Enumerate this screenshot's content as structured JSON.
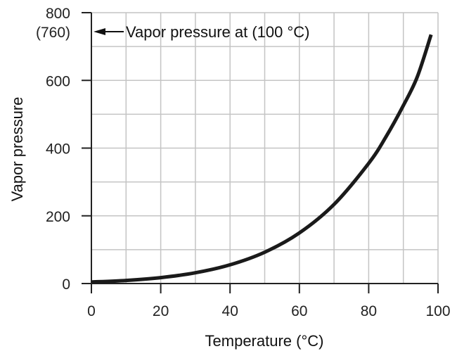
{
  "chart_data": {
    "type": "line",
    "title": "",
    "xlabel": "Temperature (°C)",
    "ylabel": "Vapor pressure",
    "xlim": [
      0,
      100
    ],
    "ylim": [
      0,
      800
    ],
    "x_ticks": [
      "0",
      "20",
      "40",
      "60",
      "80",
      "100"
    ],
    "y_ticks": [
      "0",
      "200",
      "400",
      "600",
      "800"
    ],
    "grid": true,
    "x_grid_step": 10,
    "y_grid_step": 100,
    "series": [
      {
        "color": "#1a1a1a",
        "x": [
          0,
          10,
          20,
          30,
          40,
          50,
          60,
          70,
          80,
          85,
          90,
          94,
          98
        ],
        "y": [
          4.6,
          9.2,
          17.5,
          31.8,
          55.3,
          92.5,
          149.4,
          233.7,
          355.1,
          433.6,
          525.8,
          610,
          735
        ]
      }
    ],
    "annotation": {
      "value_label": "(760)",
      "text": "Vapor pressure at (100 °C)"
    }
  }
}
